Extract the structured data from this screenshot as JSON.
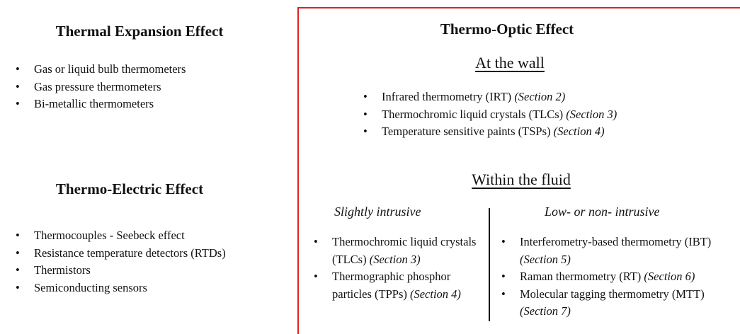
{
  "left": {
    "expansion": {
      "title": "Thermal Expansion Effect",
      "items": [
        {
          "label": "Gas or liquid bulb thermometers"
        },
        {
          "label": "Gas pressure thermometers"
        },
        {
          "label": "Bi-metallic thermometers"
        }
      ]
    },
    "electric": {
      "title": "Thermo-Electric Effect",
      "items": [
        {
          "label": "Thermocouples - Seebeck effect"
        },
        {
          "label": "Resistance temperature detectors (RTDs)"
        },
        {
          "label": "Thermistors"
        },
        {
          "label": "Semiconducting sensors"
        }
      ]
    }
  },
  "optic": {
    "title": "Thermo-Optic Effect",
    "wall": {
      "heading": "At the wall",
      "items": [
        {
          "label": "Infrared thermometry (IRT)",
          "section": "(Section 2)"
        },
        {
          "label": "Thermochromic liquid crystals (TLCs)",
          "section": "(Section 3)"
        },
        {
          "label": "Temperature sensitive paints (TSPs)",
          "section": "(Section 4)"
        }
      ]
    },
    "fluid": {
      "heading": "Within the fluid",
      "slightly": {
        "heading": "Slightly intrusive",
        "items": [
          {
            "label": "Thermochromic liquid crystals (TLCs)",
            "section": "(Section 3)"
          },
          {
            "label": "Thermographic phosphor particles (TPPs)",
            "section": "(Section 4)"
          }
        ]
      },
      "low": {
        "heading": "Low- or non- intrusive",
        "items": [
          {
            "label": "Interferometry-based thermometry (IBT)",
            "section": "(Section 5)"
          },
          {
            "label": "Raman thermometry (RT)",
            "section": "(Section 6)"
          },
          {
            "label": "Molecular tagging thermometry (MTT)",
            "section": "(Section 7)"
          }
        ]
      }
    }
  }
}
